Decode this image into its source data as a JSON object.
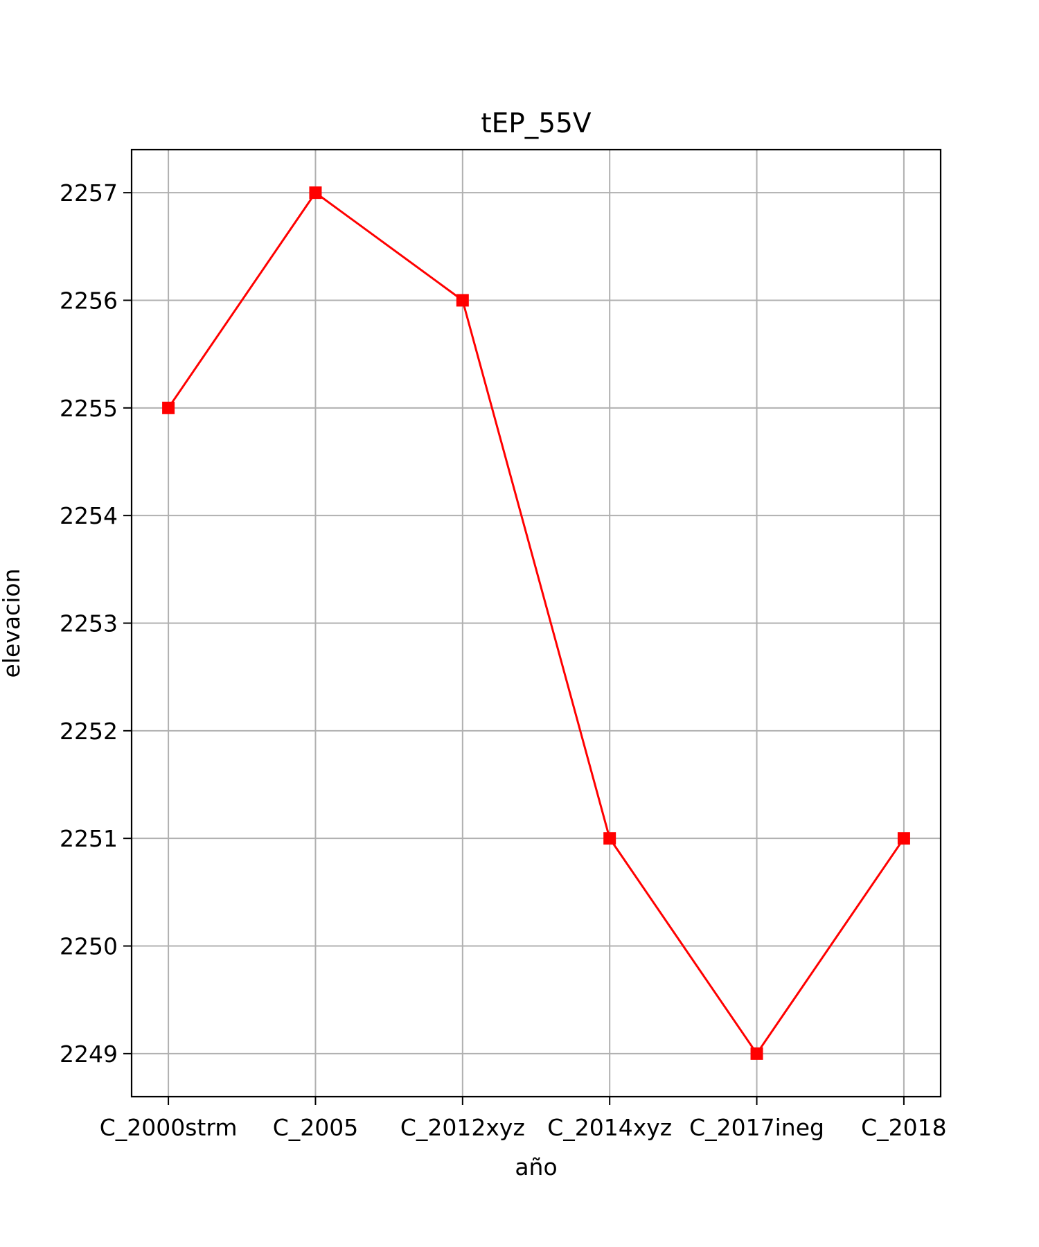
{
  "chart_data": {
    "type": "line",
    "title": "tEP_55V",
    "xlabel": "año",
    "ylabel": "elevacion",
    "categories": [
      "C_2000strm",
      "C_2005",
      "C_2012xyz",
      "C_2014xyz",
      "C_2017ineg",
      "C_2018"
    ],
    "series": [
      {
        "values": [
          2255,
          2257,
          2256,
          2251,
          2249,
          2251
        ],
        "color": "#ff0000",
        "marker": "square"
      }
    ],
    "ylim": [
      2248.6,
      2257.4
    ],
    "yticks": [
      2249,
      2250,
      2251,
      2252,
      2253,
      2254,
      2255,
      2256,
      2257
    ],
    "grid": true,
    "grid_color": "#b0b0b0"
  }
}
